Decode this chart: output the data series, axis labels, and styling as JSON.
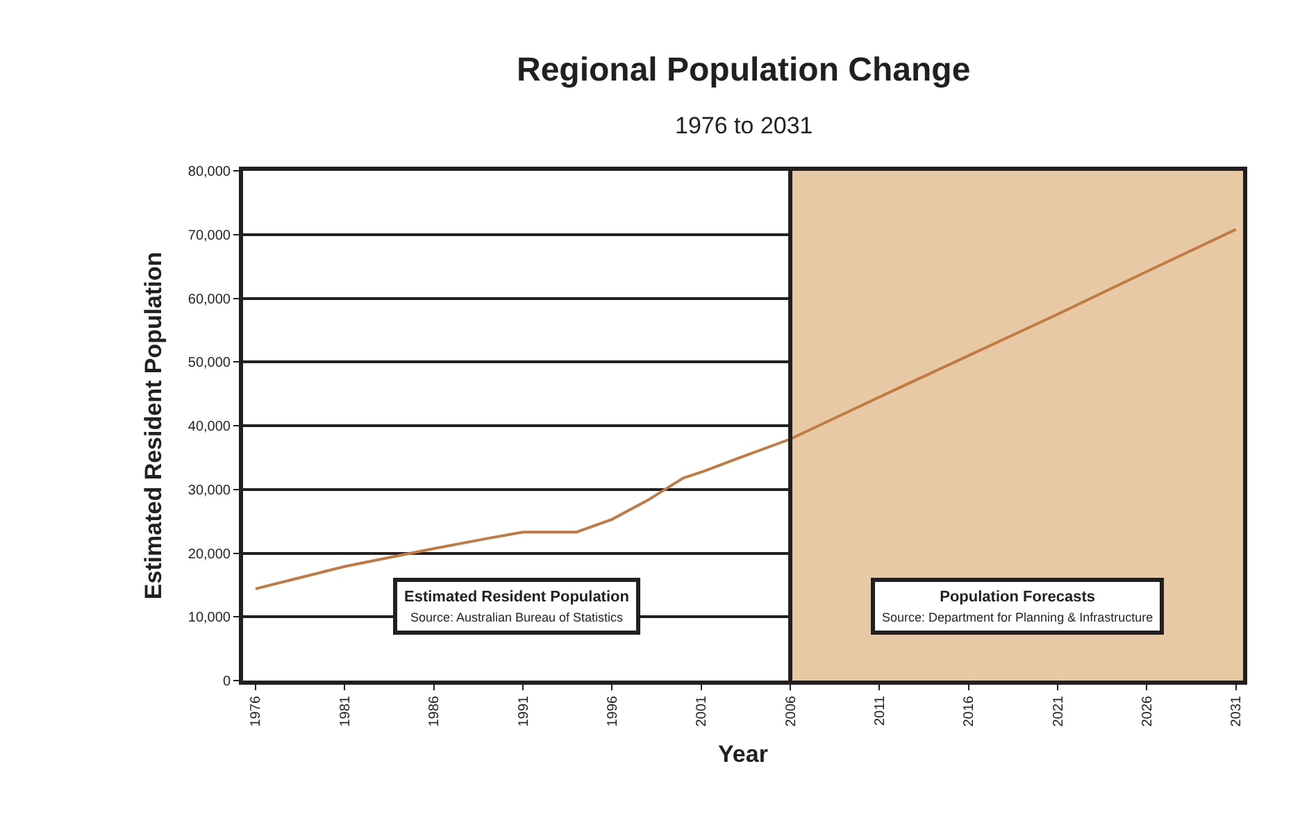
{
  "chart_data": {
    "type": "line",
    "title": "Regional Population Change",
    "subtitle": "1976 to 2031",
    "xlabel": "Year",
    "ylabel": "Estimated Resident Population",
    "x": [
      1976,
      1978,
      1981,
      1984,
      1986,
      1989,
      1991,
      1994,
      1996,
      1998,
      2000,
      2001,
      2003,
      2006,
      2011,
      2016,
      2021,
      2026,
      2031
    ],
    "series": [
      {
        "color": "#c07a42",
        "values": [
          14400,
          15800,
          17900,
          19600,
          20700,
          22300,
          23300,
          23300,
          25300,
          28300,
          31800,
          32700,
          34800,
          37900,
          44500,
          51000,
          57500,
          64200,
          70800
        ]
      }
    ],
    "xlim": [
      1975.3,
      2031.4
    ],
    "xticks": [
      1976,
      1981,
      1986,
      1991,
      1996,
      2001,
      2006,
      2011,
      2016,
      2021,
      2026,
      2031
    ],
    "ylim": [
      0,
      80000
    ],
    "yticks": [
      {
        "value": 0,
        "label": "0"
      },
      {
        "value": 10000,
        "label": "10,000"
      },
      {
        "value": 20000,
        "label": "20,000"
      },
      {
        "value": 30000,
        "label": "30,000"
      },
      {
        "value": 40000,
        "label": "40,000"
      },
      {
        "value": 50000,
        "label": "50,000"
      },
      {
        "value": 60000,
        "label": "60,000"
      },
      {
        "value": 70000,
        "label": "70,000"
      },
      {
        "value": 80000,
        "label": "80,000"
      }
    ],
    "grid": "y",
    "marker": "none",
    "line_style": "solid",
    "ref_lines": [
      {
        "axis": "x",
        "value": 2006,
        "color": "#231f20"
      }
    ],
    "bands": [
      {
        "axis": "x",
        "from": 2006,
        "to": 2031.4,
        "color": "#e8c9a5"
      }
    ],
    "annotations": [
      "Estimated Resident Population\nSource: Australian Bureau of Statistics",
      "Population Forecasts\nSource: Department for Planning & Infrastructure"
    ]
  }
}
